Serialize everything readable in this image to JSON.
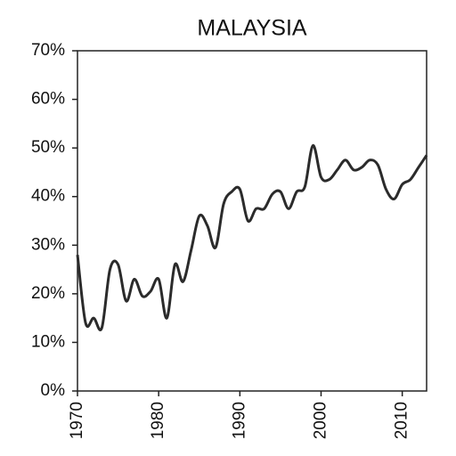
{
  "chart_data": {
    "type": "line",
    "title": "MALAYSIA",
    "x": [
      1970,
      1971,
      1972,
      1973,
      1974,
      1975,
      1976,
      1977,
      1978,
      1979,
      1980,
      1981,
      1982,
      1983,
      1984,
      1985,
      1986,
      1987,
      1988,
      1989,
      1990,
      1991,
      1992,
      1993,
      1994,
      1995,
      1996,
      1997,
      1998,
      1999,
      2000,
      2001,
      2002,
      2003,
      2004,
      2005,
      2006,
      2007,
      2008,
      2009,
      2010,
      2011,
      2012,
      2013
    ],
    "series": [
      {
        "color": "#2b2b2b",
        "values": [
          28,
          14,
          15,
          13,
          25,
          26,
          18.5,
          23,
          19.5,
          20.5,
          23,
          15,
          26,
          22.5,
          29,
          36,
          34,
          29.5,
          38.5,
          41,
          41.5,
          35,
          37.5,
          37.5,
          40.5,
          41,
          37.5,
          41,
          42,
          50.5,
          44,
          43.5,
          45.5,
          47.5,
          45.5,
          46,
          47.5,
          46.5,
          41.5,
          39.5,
          42.5,
          43.5,
          46,
          48.5
        ]
      }
    ],
    "xlim": [
      1970,
      2013
    ],
    "xticks": [
      1970,
      1980,
      1990,
      2000,
      2010
    ],
    "ylim": [
      0,
      70
    ],
    "yticks": [
      {
        "value": 0,
        "label": "0%"
      },
      {
        "value": 10,
        "label": "10%"
      },
      {
        "value": 20,
        "label": "20%"
      },
      {
        "value": 30,
        "label": "30%"
      },
      {
        "value": 40,
        "label": "40%"
      },
      {
        "value": 50,
        "label": "50%"
      },
      {
        "value": 60,
        "label": "60%"
      },
      {
        "value": 70,
        "label": "70%"
      }
    ],
    "grid": false
  }
}
